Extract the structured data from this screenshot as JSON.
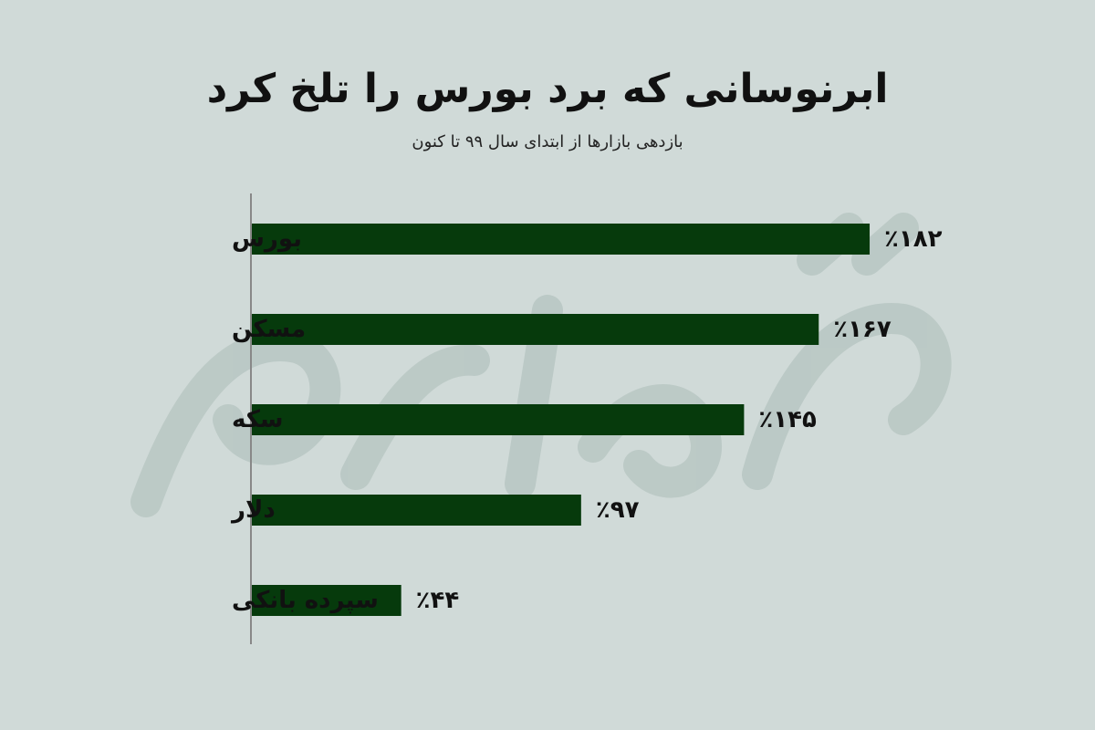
{
  "chart_data": {
    "type": "bar",
    "orientation": "horizontal",
    "title": "ابرنوسانی که برد بورس را تلخ کرد",
    "subtitle": "بازدهی بازارها از ابتدای سال ۹۹ تا کنون",
    "categories": [
      "بورس",
      "مسکن",
      "سکه",
      "دلار",
      "سپرده بانکی"
    ],
    "values": [
      182,
      167,
      145,
      97,
      44
    ],
    "value_labels": [
      "٪۱۸۲",
      "٪۱۶۷",
      "٪۱۴۵",
      "٪۹۷",
      "٪۴۴"
    ],
    "xlim": [
      0,
      200
    ],
    "grid": false,
    "legend": "none",
    "colors": {
      "bar": "#063a0c",
      "axis": "#888888",
      "background": "#d0dad8",
      "watermark": "#b5c4c0"
    }
  }
}
